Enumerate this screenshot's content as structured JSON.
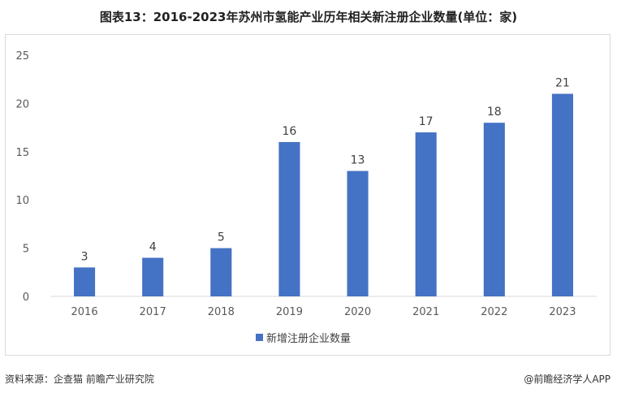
{
  "title": "图表13：2016-2023年苏州市氢能产业历年相关新注册企业数量(单位：家)",
  "footer": {
    "source": "资料来源：企查猫 前瞻产业研究院",
    "brand": "@前瞻经济学人APP"
  },
  "colors": {
    "bar": "#4472C4",
    "axis": "#d9d9d9",
    "label": "#595959"
  },
  "chart_data": {
    "type": "bar",
    "title": "图表13：2016-2023年苏州市氢能产业历年相关新注册企业数量(单位：家)",
    "categories": [
      "2016",
      "2017",
      "2018",
      "2019",
      "2020",
      "2021",
      "2022",
      "2023"
    ],
    "series": [
      {
        "name": "新增注册企业数量",
        "values": [
          3,
          4,
          5,
          16,
          13,
          17,
          18,
          21
        ]
      }
    ],
    "yticks": [
      "0",
      "5",
      "10",
      "15",
      "20",
      "25"
    ],
    "ylim": [
      0,
      25
    ],
    "legend": "bottom",
    "grid": false
  }
}
